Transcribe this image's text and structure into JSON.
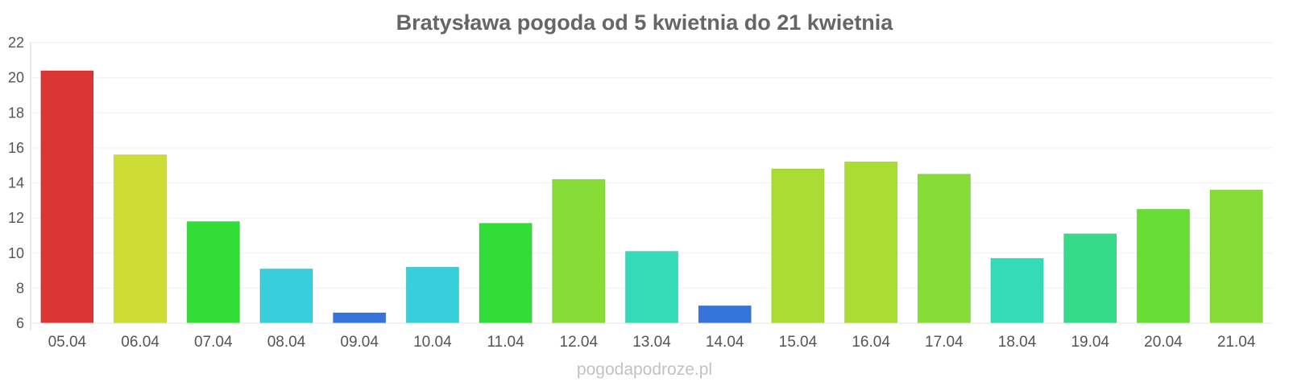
{
  "chart_data": {
    "type": "bar",
    "title": "Bratysława pogoda od 5 kwietnia do 21 kwietnia",
    "xlabel": "",
    "ylabel": "",
    "ylim": [
      6,
      22
    ],
    "yticks": [
      "6",
      "8",
      "10",
      "12",
      "14",
      "16",
      "18",
      "20",
      "22"
    ],
    "grid": true,
    "legend": "none",
    "categories": [
      "05.04",
      "06.04",
      "07.04",
      "08.04",
      "09.04",
      "10.04",
      "11.04",
      "12.04",
      "13.04",
      "14.04",
      "15.04",
      "16.04",
      "17.04",
      "18.04",
      "19.04",
      "20.04",
      "21.04"
    ],
    "values": [
      20.4,
      15.6,
      11.8,
      9.1,
      6.6,
      9.2,
      11.7,
      14.2,
      10.1,
      7.0,
      14.8,
      15.2,
      14.5,
      9.7,
      11.1,
      12.5,
      13.6
    ],
    "colors": [
      "#dc3535",
      "#cddd33",
      "#32dd38",
      "#36cfdb",
      "#3575db",
      "#36cfdb",
      "#32dd38",
      "#86dd35",
      "#35dbb6",
      "#3575db",
      "#aadd34",
      "#aadd34",
      "#86dd35",
      "#35dbb6",
      "#35db88",
      "#68dd36",
      "#86dd35"
    ]
  },
  "watermark": "pogodapodroze.pl"
}
